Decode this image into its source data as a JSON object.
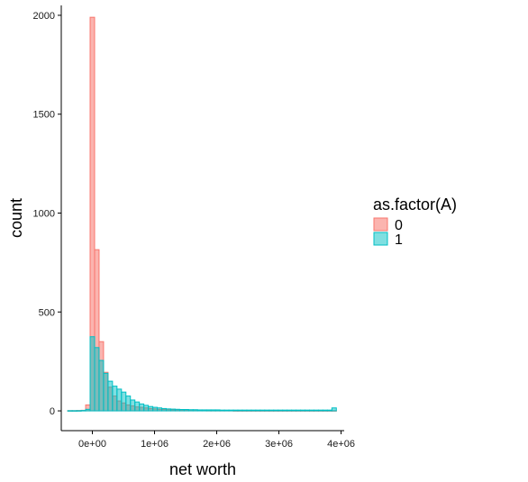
{
  "chart_data": {
    "type": "histogram",
    "xlabel": "net worth",
    "ylabel": "count",
    "xlim": [
      -500000,
      4050000
    ],
    "ylim": [
      -100,
      2050
    ],
    "x_ticks": [
      {
        "value": 0,
        "label": "0e+00"
      },
      {
        "value": 1000000,
        "label": "1e+06"
      },
      {
        "value": 2000000,
        "label": "2e+06"
      },
      {
        "value": 3000000,
        "label": "3e+06"
      },
      {
        "value": 4000000,
        "label": "4e+06"
      }
    ],
    "y_ticks": [
      {
        "value": 0,
        "label": "0"
      },
      {
        "value": 500,
        "label": "500"
      },
      {
        "value": 1000,
        "label": "1000"
      },
      {
        "value": 1500,
        "label": "1500"
      },
      {
        "value": 2000,
        "label": "2000"
      }
    ],
    "bin_width": 72000,
    "bin_starts": [
      -396000,
      -324000,
      -252000,
      -180000,
      -108000,
      -36000,
      36000,
      108000,
      180000,
      252000,
      324000,
      396000,
      468000,
      540000,
      612000,
      684000,
      756000,
      828000,
      900000,
      972000,
      1044000,
      1116000,
      1188000,
      1260000,
      1332000,
      1404000,
      1476000,
      1548000,
      1620000,
      1692000,
      1764000,
      1836000,
      1908000,
      1980000,
      2052000,
      2124000,
      2196000,
      2268000,
      2340000,
      2412000,
      2484000,
      2556000,
      2628000,
      2700000,
      2772000,
      2844000,
      2916000,
      2988000,
      3060000,
      3132000,
      3204000,
      3276000,
      3348000,
      3420000,
      3492000,
      3564000,
      3636000,
      3708000,
      3780000,
      3852000
    ],
    "legend": {
      "title": "as.factor(A)",
      "position": "right"
    },
    "grid": false,
    "series": [
      {
        "name": "0",
        "fill": "#F8766D",
        "values": [
          1,
          1,
          2,
          3,
          30,
          1990,
          815,
          350,
          195,
          120,
          75,
          50,
          40,
          30,
          25,
          20,
          18,
          15,
          12,
          10,
          8,
          7,
          6,
          5,
          5,
          4,
          4,
          3,
          3,
          3,
          3,
          2,
          2,
          2,
          2,
          2,
          2,
          1,
          1,
          1,
          1,
          1,
          1,
          1,
          1,
          1,
          1,
          1,
          1,
          1,
          1,
          1,
          1,
          1,
          1,
          1,
          1,
          1,
          1,
          1
        ]
      },
      {
        "name": "1",
        "fill": "#00BFC4",
        "values": [
          1,
          1,
          1,
          2,
          8,
          375,
          320,
          255,
          190,
          150,
          125,
          110,
          95,
          75,
          55,
          45,
          35,
          28,
          22,
          18,
          15,
          12,
          10,
          9,
          8,
          7,
          7,
          6,
          6,
          5,
          5,
          5,
          5,
          5,
          4,
          4,
          4,
          4,
          4,
          4,
          4,
          4,
          4,
          4,
          4,
          4,
          4,
          4,
          4,
          4,
          4,
          4,
          4,
          4,
          4,
          4,
          4,
          4,
          4,
          15
        ]
      }
    ]
  }
}
